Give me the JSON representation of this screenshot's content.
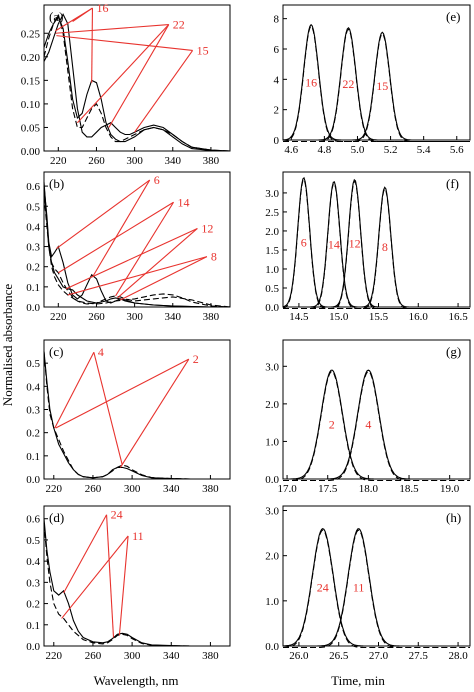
{
  "figure": {
    "left_xlabel": "Wavelength, nm",
    "right_xlabel": "Time, min",
    "left_ylabel": "Normalised absorbance"
  },
  "chart_data": [
    {
      "id": "a",
      "panel_label": "(a)",
      "type": "line",
      "xticks": [
        "220",
        "260",
        "300",
        "340",
        "380"
      ],
      "yticks": [
        "0.00",
        "0.05",
        "0.10",
        "0.15",
        "0.20",
        "0.25"
      ],
      "xlim": [
        205,
        400
      ],
      "ylim": [
        0,
        0.31
      ],
      "series": [
        {
          "name": "16",
          "style": "solid",
          "x": [
            205,
            210,
            215,
            220,
            225,
            230,
            235,
            240,
            245,
            250,
            255,
            260,
            265,
            270,
            275,
            280,
            285,
            290,
            295,
            300,
            310,
            320,
            330,
            340,
            350,
            360,
            380,
            400
          ],
          "y": [
            0.22,
            0.25,
            0.27,
            0.285,
            0.26,
            0.19,
            0.11,
            0.07,
            0.08,
            0.12,
            0.15,
            0.145,
            0.11,
            0.06,
            0.035,
            0.025,
            0.02,
            0.02,
            0.025,
            0.03,
            0.045,
            0.05,
            0.045,
            0.03,
            0.015,
            0.005,
            0.001,
            0
          ]
        },
        {
          "name": "22",
          "style": "dashed",
          "x": [
            205,
            210,
            215,
            220,
            225,
            230,
            235,
            240,
            245,
            250,
            255,
            260,
            265,
            270,
            275,
            280,
            285,
            290,
            295,
            300,
            310,
            320,
            330,
            340,
            350,
            360,
            380,
            400
          ],
          "y": [
            0.2,
            0.24,
            0.27,
            0.29,
            0.25,
            0.17,
            0.09,
            0.05,
            0.05,
            0.07,
            0.09,
            0.1,
            0.08,
            0.05,
            0.03,
            0.02,
            0.02,
            0.025,
            0.03,
            0.035,
            0.045,
            0.05,
            0.045,
            0.035,
            0.02,
            0.008,
            0.002,
            0
          ]
        },
        {
          "name": "15",
          "style": "solid",
          "x": [
            205,
            210,
            215,
            220,
            225,
            230,
            235,
            240,
            245,
            250,
            255,
            260,
            265,
            270,
            275,
            280,
            285,
            290,
            295,
            300,
            310,
            320,
            330,
            340,
            350,
            360,
            380,
            400
          ],
          "y": [
            0.19,
            0.21,
            0.24,
            0.27,
            0.29,
            0.27,
            0.18,
            0.09,
            0.04,
            0.03,
            0.03,
            0.04,
            0.05,
            0.055,
            0.06,
            0.05,
            0.04,
            0.035,
            0.035,
            0.04,
            0.05,
            0.055,
            0.05,
            0.035,
            0.02,
            0.008,
            0.002,
            0
          ]
        }
      ],
      "annotations": [
        {
          "text": "16",
          "x": 260,
          "y": 0.295,
          "targets": [
            [
              217,
              0.255
            ],
            [
              235,
              0.275
            ],
            [
              255,
              0.145
            ]
          ]
        },
        {
          "text": "22",
          "x": 340,
          "y": 0.26,
          "targets": [
            [
              217,
              0.25
            ],
            [
              240,
              0.06
            ],
            [
              273,
              0.05
            ]
          ]
        },
        {
          "text": "15",
          "x": 365,
          "y": 0.205,
          "targets": [
            [
              218,
              0.245
            ],
            [
              300,
              0.04
            ]
          ]
        }
      ]
    },
    {
      "id": "b",
      "panel_label": "(b)",
      "type": "line",
      "xticks": [
        "220",
        "260",
        "300",
        "340",
        "380"
      ],
      "yticks": [
        "0.0",
        "0.1",
        "0.2",
        "0.3",
        "0.4",
        "0.5",
        "0.6"
      ],
      "xlim": [
        205,
        400
      ],
      "ylim": [
        0,
        0.67
      ],
      "series": [
        {
          "name": "6",
          "style": "solid",
          "x": [
            205,
            208,
            210,
            213,
            216,
            220,
            225,
            230,
            235,
            240,
            245,
            250,
            255,
            260,
            265,
            270,
            275,
            280,
            285,
            290,
            300,
            320,
            340,
            360,
            380,
            400
          ],
          "y": [
            0.6,
            0.45,
            0.32,
            0.25,
            0.27,
            0.3,
            0.22,
            0.12,
            0.06,
            0.04,
            0.06,
            0.11,
            0.16,
            0.14,
            0.08,
            0.03,
            0.02,
            0.03,
            0.04,
            0.035,
            0.02,
            0.01,
            0.005,
            0.002,
            0,
            0
          ]
        },
        {
          "name": "14",
          "style": "dashed",
          "x": [
            205,
            208,
            210,
            213,
            216,
            220,
            225,
            230,
            235,
            240,
            245,
            250,
            260,
            270,
            275,
            280,
            285,
            290,
            300,
            320,
            340,
            360,
            380,
            400
          ],
          "y": [
            0.58,
            0.42,
            0.3,
            0.22,
            0.19,
            0.17,
            0.12,
            0.08,
            0.05,
            0.03,
            0.02,
            0.015,
            0.02,
            0.04,
            0.05,
            0.055,
            0.05,
            0.04,
            0.03,
            0.04,
            0.05,
            0.035,
            0.01,
            0
          ]
        },
        {
          "name": "12",
          "style": "solid",
          "x": [
            205,
            208,
            210,
            213,
            216,
            220,
            225,
            230,
            235,
            240,
            250,
            260,
            270,
            275,
            280,
            285,
            290,
            300,
            320,
            340,
            360,
            380,
            400
          ],
          "y": [
            0.62,
            0.43,
            0.3,
            0.22,
            0.17,
            0.14,
            0.1,
            0.09,
            0.085,
            0.06,
            0.03,
            0.02,
            0.03,
            0.04,
            0.045,
            0.04,
            0.03,
            0.02,
            0.01,
            0.005,
            0.002,
            0,
            0
          ]
        },
        {
          "name": "8",
          "style": "dashed",
          "x": [
            205,
            208,
            210,
            213,
            216,
            220,
            225,
            230,
            235,
            240,
            250,
            260,
            270,
            280,
            290,
            300,
            310,
            320,
            330,
            340,
            350,
            360,
            380,
            400
          ],
          "y": [
            0.55,
            0.4,
            0.3,
            0.2,
            0.15,
            0.11,
            0.08,
            0.06,
            0.045,
            0.03,
            0.02,
            0.015,
            0.02,
            0.03,
            0.035,
            0.04,
            0.05,
            0.06,
            0.065,
            0.06,
            0.045,
            0.025,
            0.005,
            0
          ]
        }
      ],
      "annotations": [
        {
          "text": "6",
          "x": 320,
          "y": 0.61,
          "targets": [
            [
              218,
              0.29
            ],
            [
              256,
              0.15
            ]
          ]
        },
        {
          "text": "14",
          "x": 345,
          "y": 0.5,
          "targets": [
            [
              220,
              0.17
            ],
            [
              280,
              0.055
            ]
          ]
        },
        {
          "text": "12",
          "x": 370,
          "y": 0.37,
          "targets": [
            [
              228,
              0.09
            ],
            [
              282,
              0.045
            ]
          ]
        },
        {
          "text": "8",
          "x": 380,
          "y": 0.23,
          "targets": [
            [
              230,
              0.06
            ],
            [
              285,
              0.035
            ]
          ]
        }
      ]
    },
    {
      "id": "c",
      "panel_label": "(c)",
      "type": "line",
      "xticks": [
        "220",
        "260",
        "300",
        "340",
        "380"
      ],
      "yticks": [
        "0.0",
        "0.1",
        "0.2",
        "0.3",
        "0.4",
        "0.5"
      ],
      "xlim": [
        210,
        400
      ],
      "ylim": [
        0,
        0.6
      ],
      "series": [
        {
          "name": "2",
          "style": "solid",
          "x": [
            210,
            213,
            216,
            220,
            225,
            230,
            235,
            240,
            245,
            250,
            260,
            270,
            275,
            280,
            285,
            290,
            295,
            300,
            310,
            320,
            340,
            360,
            400
          ],
          "y": [
            0.55,
            0.42,
            0.3,
            0.22,
            0.15,
            0.11,
            0.07,
            0.04,
            0.02,
            0.01,
            0.005,
            0.01,
            0.02,
            0.04,
            0.05,
            0.05,
            0.045,
            0.035,
            0.015,
            0.005,
            0.002,
            0,
            0
          ]
        },
        {
          "name": "4",
          "style": "dashed",
          "x": [
            210,
            213,
            216,
            220,
            225,
            230,
            235,
            240,
            245,
            250,
            260,
            270,
            275,
            280,
            285,
            290,
            295,
            300,
            310,
            320,
            340,
            360,
            400
          ],
          "y": [
            0.55,
            0.4,
            0.28,
            0.22,
            0.17,
            0.12,
            0.08,
            0.04,
            0.02,
            0.01,
            0.005,
            0.01,
            0.02,
            0.035,
            0.05,
            0.06,
            0.055,
            0.04,
            0.018,
            0.006,
            0.002,
            0,
            0
          ]
        }
      ],
      "annotations": [
        {
          "text": "4",
          "x": 265,
          "y": 0.53,
          "targets": [
            [
              221,
              0.22
            ],
            [
              290,
              0.06
            ]
          ]
        },
        {
          "text": "2",
          "x": 362,
          "y": 0.5,
          "targets": [
            [
              222,
              0.22
            ],
            [
              288,
              0.05
            ]
          ]
        }
      ]
    },
    {
      "id": "d",
      "panel_label": "(d)",
      "type": "line",
      "xticks": [
        "220",
        "260",
        "300",
        "340",
        "380"
      ],
      "yticks": [
        "0.0",
        "0.1",
        "0.2",
        "0.3",
        "0.4",
        "0.5",
        "0.6"
      ],
      "xlim": [
        210,
        400
      ],
      "ylim": [
        0,
        0.66
      ],
      "series": [
        {
          "name": "24",
          "style": "solid",
          "x": [
            210,
            213,
            216,
            220,
            225,
            230,
            235,
            240,
            245,
            250,
            260,
            270,
            275,
            280,
            285,
            290,
            295,
            300,
            310,
            320,
            340,
            360,
            400
          ],
          "y": [
            0.6,
            0.45,
            0.35,
            0.26,
            0.24,
            0.26,
            0.2,
            0.12,
            0.07,
            0.04,
            0.02,
            0.015,
            0.02,
            0.035,
            0.055,
            0.06,
            0.055,
            0.04,
            0.015,
            0.005,
            0.002,
            0,
            0
          ]
        },
        {
          "name": "11",
          "style": "dashed",
          "x": [
            210,
            213,
            216,
            220,
            225,
            230,
            235,
            240,
            245,
            250,
            260,
            270,
            275,
            280,
            285,
            290,
            295,
            300,
            310,
            320,
            340,
            360,
            400
          ],
          "y": [
            0.58,
            0.42,
            0.3,
            0.2,
            0.15,
            0.13,
            0.1,
            0.07,
            0.05,
            0.03,
            0.015,
            0.01,
            0.015,
            0.03,
            0.05,
            0.055,
            0.05,
            0.035,
            0.012,
            0.004,
            0.001,
            0,
            0
          ]
        }
      ],
      "annotations": [
        {
          "text": "24",
          "x": 278,
          "y": 0.6,
          "targets": [
            [
              230,
              0.25
            ],
            [
              281,
              0.04
            ]
          ]
        },
        {
          "text": "11",
          "x": 300,
          "y": 0.5,
          "targets": [
            [
              228,
              0.13
            ],
            [
              287,
              0.05
            ]
          ]
        }
      ]
    },
    {
      "id": "e",
      "panel_label": "(e)",
      "type": "line",
      "xticks": [
        "4.6",
        "4.8",
        "5.0",
        "5.2",
        "5.4",
        "5.6"
      ],
      "yticks": [
        "0",
        "2",
        "4",
        "6",
        "8"
      ],
      "xlim": [
        4.55,
        5.68
      ],
      "ylim": [
        0,
        8.9
      ],
      "peaks": [
        {
          "name": "16",
          "center": 4.72,
          "height": 7.6,
          "width": 0.045
        },
        {
          "name": "22",
          "center": 4.945,
          "height": 7.4,
          "width": 0.045
        },
        {
          "name": "15",
          "center": 5.15,
          "height": 7.1,
          "width": 0.045
        }
      ]
    },
    {
      "id": "f",
      "panel_label": "(f)",
      "type": "line",
      "xticks": [
        "14.5",
        "15.0",
        "15.5",
        "16.0",
        "16.5"
      ],
      "yticks": [
        "0.0",
        "0.5",
        "1.0",
        "1.5",
        "2.0",
        "2.5",
        "3.0"
      ],
      "xlim": [
        14.3,
        16.65
      ],
      "ylim": [
        0,
        3.55
      ],
      "peaks": [
        {
          "name": "6",
          "center": 14.56,
          "height": 3.4,
          "width": 0.075
        },
        {
          "name": "14",
          "center": 14.94,
          "height": 3.3,
          "width": 0.075
        },
        {
          "name": "12",
          "center": 15.2,
          "height": 3.35,
          "width": 0.075
        },
        {
          "name": "8",
          "center": 15.58,
          "height": 3.15,
          "width": 0.075
        }
      ]
    },
    {
      "id": "g",
      "panel_label": "(g)",
      "type": "line",
      "xticks": [
        "17.0",
        "17.5",
        "18.0",
        "18.5",
        "19.0"
      ],
      "yticks": [
        "0.0",
        "1.0",
        "2.0",
        "3.0"
      ],
      "xlim": [
        16.95,
        19.25
      ],
      "ylim": [
        0,
        3.7
      ],
      "peaks": [
        {
          "name": "2",
          "center": 17.55,
          "height": 2.9,
          "width": 0.13
        },
        {
          "name": "4",
          "center": 18.0,
          "height": 2.9,
          "width": 0.13
        }
      ]
    },
    {
      "id": "h",
      "panel_label": "(h)",
      "type": "line",
      "xticks": [
        "26.0",
        "26.5",
        "27.0",
        "27.5",
        "28.0"
      ],
      "yticks": [
        "0.0",
        "1.0",
        "2.0",
        "3.0"
      ],
      "xlim": [
        25.8,
        28.15
      ],
      "ylim": [
        0,
        3.1
      ],
      "peaks": [
        {
          "name": "24",
          "center": 26.3,
          "height": 2.6,
          "width": 0.13
        },
        {
          "name": "11",
          "center": 26.75,
          "height": 2.6,
          "width": 0.13
        }
      ]
    }
  ]
}
